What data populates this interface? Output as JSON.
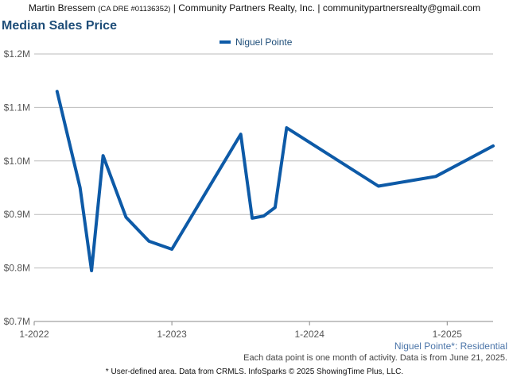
{
  "header": {
    "agent_name": "Martin Bressem",
    "agent_dre": "(CA DRE #01136352)",
    "company_and_email": "| Community Partners Realty, Inc. | communitypartnersrealty@gmail.com"
  },
  "colors": {
    "series": "#0d5aa7",
    "title": "#1f4e79",
    "grid": "#bbbbbb"
  },
  "chart_data": {
    "type": "line",
    "title": "Median Sales Price",
    "legend": {
      "entries": [
        "Niguel Pointe"
      ],
      "placement": "top-center"
    },
    "y_ticks": [
      "$0.7M",
      "$0.8M",
      "$0.9M",
      "$1.0M",
      "$1.1M",
      "$1.2M"
    ],
    "x_ticks": [
      "1-2022",
      "1-2023",
      "1-2024",
      "1-2025"
    ],
    "ylim": [
      700000,
      1200000
    ],
    "xlim": [
      "2022-01",
      "2025-05"
    ],
    "grid": true,
    "series": [
      {
        "name": "Niguel Pointe",
        "points": [
          {
            "x": "2022-03",
            "y": 1130000
          },
          {
            "x": "2022-05",
            "y": 950000
          },
          {
            "x": "2022-06",
            "y": 795000
          },
          {
            "x": "2022-07",
            "y": 1010000
          },
          {
            "x": "2022-09",
            "y": 895000
          },
          {
            "x": "2022-11",
            "y": 850000
          },
          {
            "x": "2023-01",
            "y": 835000
          },
          {
            "x": "2023-07",
            "y": 1050000
          },
          {
            "x": "2023-08",
            "y": 893000
          },
          {
            "x": "2023-09",
            "y": 897000
          },
          {
            "x": "2023-10",
            "y": 913000
          },
          {
            "x": "2023-11",
            "y": 1062000
          },
          {
            "x": "2024-07",
            "y": 953000
          },
          {
            "x": "2024-12",
            "y": 971000
          },
          {
            "x": "2025-05",
            "y": 1028000
          }
        ]
      }
    ]
  },
  "area_label": "Niguel Pointe*: Residential",
  "note": "Each data point is one month of activity. Data is from June 21, 2025.",
  "footer": "* User-defined area. Data from CRMLS. InfoSparks © 2025 ShowingTime Plus, LLC."
}
